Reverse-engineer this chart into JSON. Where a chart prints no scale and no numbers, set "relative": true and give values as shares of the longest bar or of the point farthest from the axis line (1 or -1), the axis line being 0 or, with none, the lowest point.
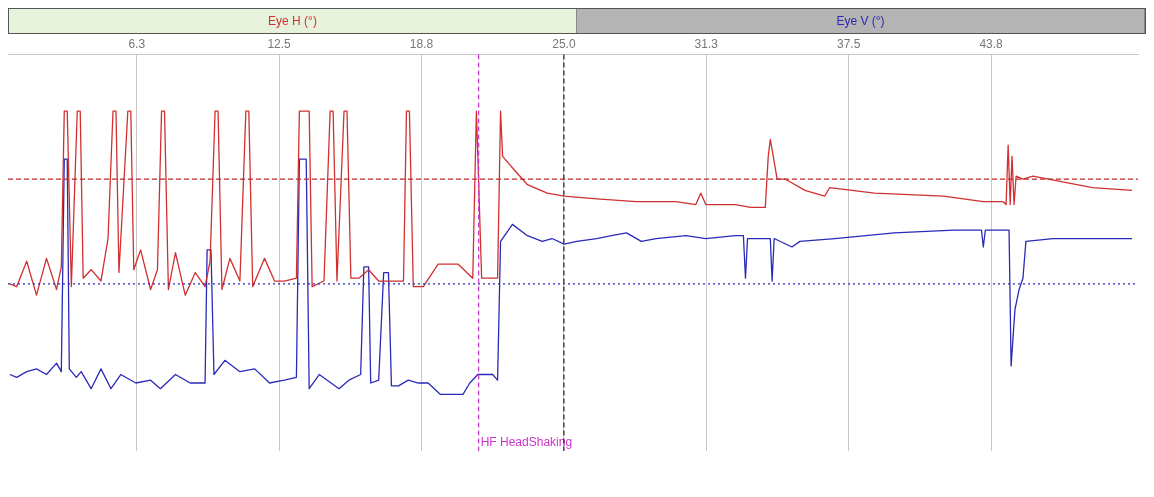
{
  "chart_data": {
    "type": "line",
    "relative": true,
    "legend": "top",
    "grid": "x",
    "marker": "none",
    "line_style": "solid",
    "xlim": [
      0.6,
      50.2
    ],
    "xticks": [
      {
        "value": 6.25,
        "label": "6.3"
      },
      12.5,
      {
        "value": 18.75,
        "label": "18.8"
      },
      {
        "value": 25,
        "label": "25.0"
      },
      {
        "value": 31.25,
        "label": "31.3"
      },
      37.5,
      {
        "value": 43.75,
        "label": "43.8"
      }
    ],
    "ref_lines": [
      {
        "axis": "y",
        "value": 0.76,
        "color": "#c0282d",
        "line_style": "dashed"
      },
      {
        "axis": "y",
        "value": 0.39,
        "color": "#2a2ab8",
        "line_style": "dotted"
      },
      {
        "axis": "x",
        "value": 21.26,
        "label": "HF HeadShaking",
        "color": "#cc33cc",
        "line_style": "dashed"
      },
      {
        "axis": "x",
        "value": 25,
        "color": "#222222",
        "line_style": "dashed"
      }
    ],
    "series": [
      {
        "name": "Eye H (°)",
        "color": "#d03030",
        "x": [
          0.68,
          0.98,
          1.42,
          1.85,
          2.29,
          2.73,
          2.94,
          3.07,
          3.2,
          3.38,
          3.64,
          3.77,
          3.9,
          4.25,
          4.68,
          4.99,
          5.21,
          5.34,
          5.47,
          5.86,
          5.99,
          6.12,
          6.42,
          6.86,
          7.16,
          7.34,
          7.47,
          7.64,
          7.95,
          8.38,
          8.82,
          9.25,
          9.47,
          9.69,
          9.82,
          9.99,
          10.34,
          10.78,
          11.04,
          11.17,
          11.34,
          11.86,
          12.3,
          12.73,
          13.26,
          13.39,
          13.52,
          13.69,
          13.82,
          13.95,
          14.47,
          14.74,
          14.87,
          15.04,
          15.35,
          15.48,
          15.65,
          16.0,
          16.43,
          16.87,
          17.52,
          17.96,
          18.09,
          18.22,
          18.39,
          18.83,
          19.48,
          20.35,
          21.0,
          21.16,
          21.39,
          22.09,
          22.22,
          22.31,
          22.74,
          23.4,
          24.27,
          25.01,
          26.44,
          28.18,
          29.92,
          30.79,
          31.01,
          31.23,
          32.53,
          33.19,
          33.84,
          33.97,
          34.06,
          34.19,
          34.36,
          34.71,
          35.58,
          36.45,
          36.67,
          38.63,
          41.67,
          43.41,
          44.28,
          44.41,
          44.5,
          44.59,
          44.67,
          44.76,
          44.85,
          45.15,
          45.59,
          48.2,
          49.94
        ],
        "values": [
          0.39,
          0.38,
          0.47,
          0.35,
          0.48,
          0.37,
          0.45,
          1.0,
          1.0,
          0.38,
          1.0,
          1.0,
          0.41,
          0.44,
          0.4,
          0.55,
          1.0,
          1.0,
          0.43,
          1.0,
          1.0,
          0.44,
          0.51,
          0.37,
          0.44,
          1.0,
          1.0,
          0.37,
          0.5,
          0.35,
          0.43,
          0.38,
          0.47,
          1.0,
          1.0,
          0.37,
          0.48,
          0.4,
          1.0,
          1.0,
          0.38,
          0.48,
          0.4,
          0.4,
          0.41,
          1.0,
          1.0,
          1.0,
          1.0,
          0.38,
          0.4,
          1.0,
          1.0,
          0.4,
          1.0,
          1.0,
          0.41,
          0.41,
          0.44,
          0.4,
          0.4,
          0.4,
          1.0,
          1.0,
          0.38,
          0.38,
          0.46,
          0.46,
          0.41,
          1.0,
          0.41,
          0.41,
          1.0,
          0.84,
          0.8,
          0.74,
          0.71,
          0.7,
          0.69,
          0.68,
          0.68,
          0.67,
          0.71,
          0.67,
          0.67,
          0.66,
          0.66,
          0.84,
          0.9,
          0.84,
          0.76,
          0.76,
          0.72,
          0.7,
          0.73,
          0.71,
          0.7,
          0.68,
          0.68,
          0.67,
          0.88,
          0.67,
          0.84,
          0.67,
          0.77,
          0.76,
          0.77,
          0.73,
          0.72
        ]
      },
      {
        "name": "Eye V (°)",
        "color": "#2a2ab8",
        "x": [
          0.68,
          0.98,
          1.42,
          1.85,
          2.29,
          2.73,
          2.94,
          3.07,
          3.2,
          3.29,
          3.6,
          3.81,
          4.25,
          4.68,
          5.12,
          5.55,
          6.21,
          6.86,
          7.29,
          7.95,
          8.6,
          9.25,
          9.34,
          9.51,
          9.64,
          10.12,
          10.78,
          11.43,
          12.08,
          12.73,
          13.26,
          13.39,
          13.69,
          13.82,
          14.26,
          15.13,
          15.56,
          16.08,
          16.22,
          16.43,
          16.52,
          16.87,
          17.09,
          17.3,
          17.43,
          17.74,
          18.17,
          18.61,
          19.04,
          19.57,
          20.57,
          20.87,
          21.22,
          21.87,
          22.09,
          22.22,
          22.74,
          23.4,
          24.05,
          24.48,
          25.01,
          25.57,
          26.44,
          27.09,
          27.75,
          28.4,
          29.05,
          30.36,
          31.23,
          32.53,
          32.88,
          32.97,
          33.06,
          34.06,
          34.14,
          34.23,
          35.01,
          35.36,
          36.89,
          39.5,
          42.11,
          43.33,
          43.41,
          43.5,
          44.28,
          44.54,
          44.63,
          44.8,
          44.98,
          45.15,
          45.28,
          46.46,
          48.2,
          49.94
        ],
        "values": [
          0.07,
          0.06,
          0.08,
          0.09,
          0.07,
          0.11,
          0.08,
          0.83,
          0.83,
          0.09,
          0.06,
          0.08,
          0.02,
          0.09,
          0.02,
          0.07,
          0.04,
          0.05,
          0.02,
          0.07,
          0.04,
          0.04,
          0.51,
          0.51,
          0.07,
          0.12,
          0.08,
          0.09,
          0.04,
          0.05,
          0.06,
          0.83,
          0.83,
          0.02,
          0.07,
          0.02,
          0.05,
          0.07,
          0.45,
          0.45,
          0.04,
          0.05,
          0.43,
          0.43,
          0.03,
          0.03,
          0.05,
          0.04,
          0.04,
          0,
          0,
          0.04,
          0.07,
          0.07,
          0.05,
          0.54,
          0.6,
          0.56,
          0.54,
          0.55,
          0.53,
          0.54,
          0.55,
          0.56,
          0.57,
          0.54,
          0.55,
          0.56,
          0.55,
          0.56,
          0.56,
          0.41,
          0.55,
          0.55,
          0.4,
          0.55,
          0.52,
          0.54,
          0.55,
          0.57,
          0.58,
          0.58,
          0.52,
          0.58,
          0.58,
          0.58,
          0.1,
          0.3,
          0.37,
          0.41,
          0.54,
          0.55,
          0.55,
          0.55
        ]
      }
    ]
  }
}
